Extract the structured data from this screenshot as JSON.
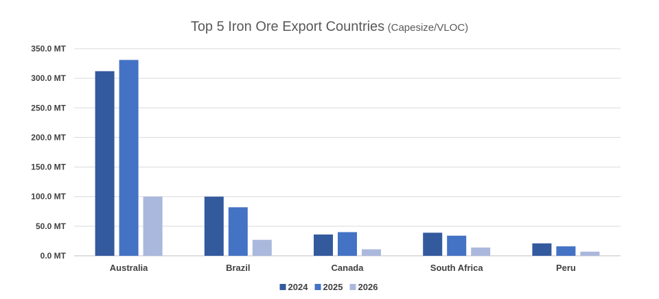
{
  "chart_data": {
    "type": "bar",
    "title": "Top 5 Iron Ore Export Countries",
    "subtitle": "(Capesize/VLOC)",
    "categories": [
      "Australia",
      "Brazil",
      "Canada",
      "South Africa",
      "Peru"
    ],
    "series": [
      {
        "name": "2024",
        "color": "#345A9E",
        "values": [
          312,
          100,
          36,
          39,
          21
        ]
      },
      {
        "name": "2025",
        "color": "#4472C4",
        "values": [
          331,
          82,
          40,
          34,
          16
        ]
      },
      {
        "name": "2026",
        "color": "#ABB8DD",
        "values": [
          100,
          27,
          11,
          14,
          7
        ]
      }
    ],
    "y_ticks": [
      "0.0 MT",
      "50.0 MT",
      "100.0 MT",
      "150.0 MT",
      "200.0 MT",
      "250.0 MT",
      "300.0 MT",
      "350.0 MT"
    ],
    "ylim": [
      0,
      350
    ],
    "grid": true,
    "legend_position": "bottom"
  }
}
